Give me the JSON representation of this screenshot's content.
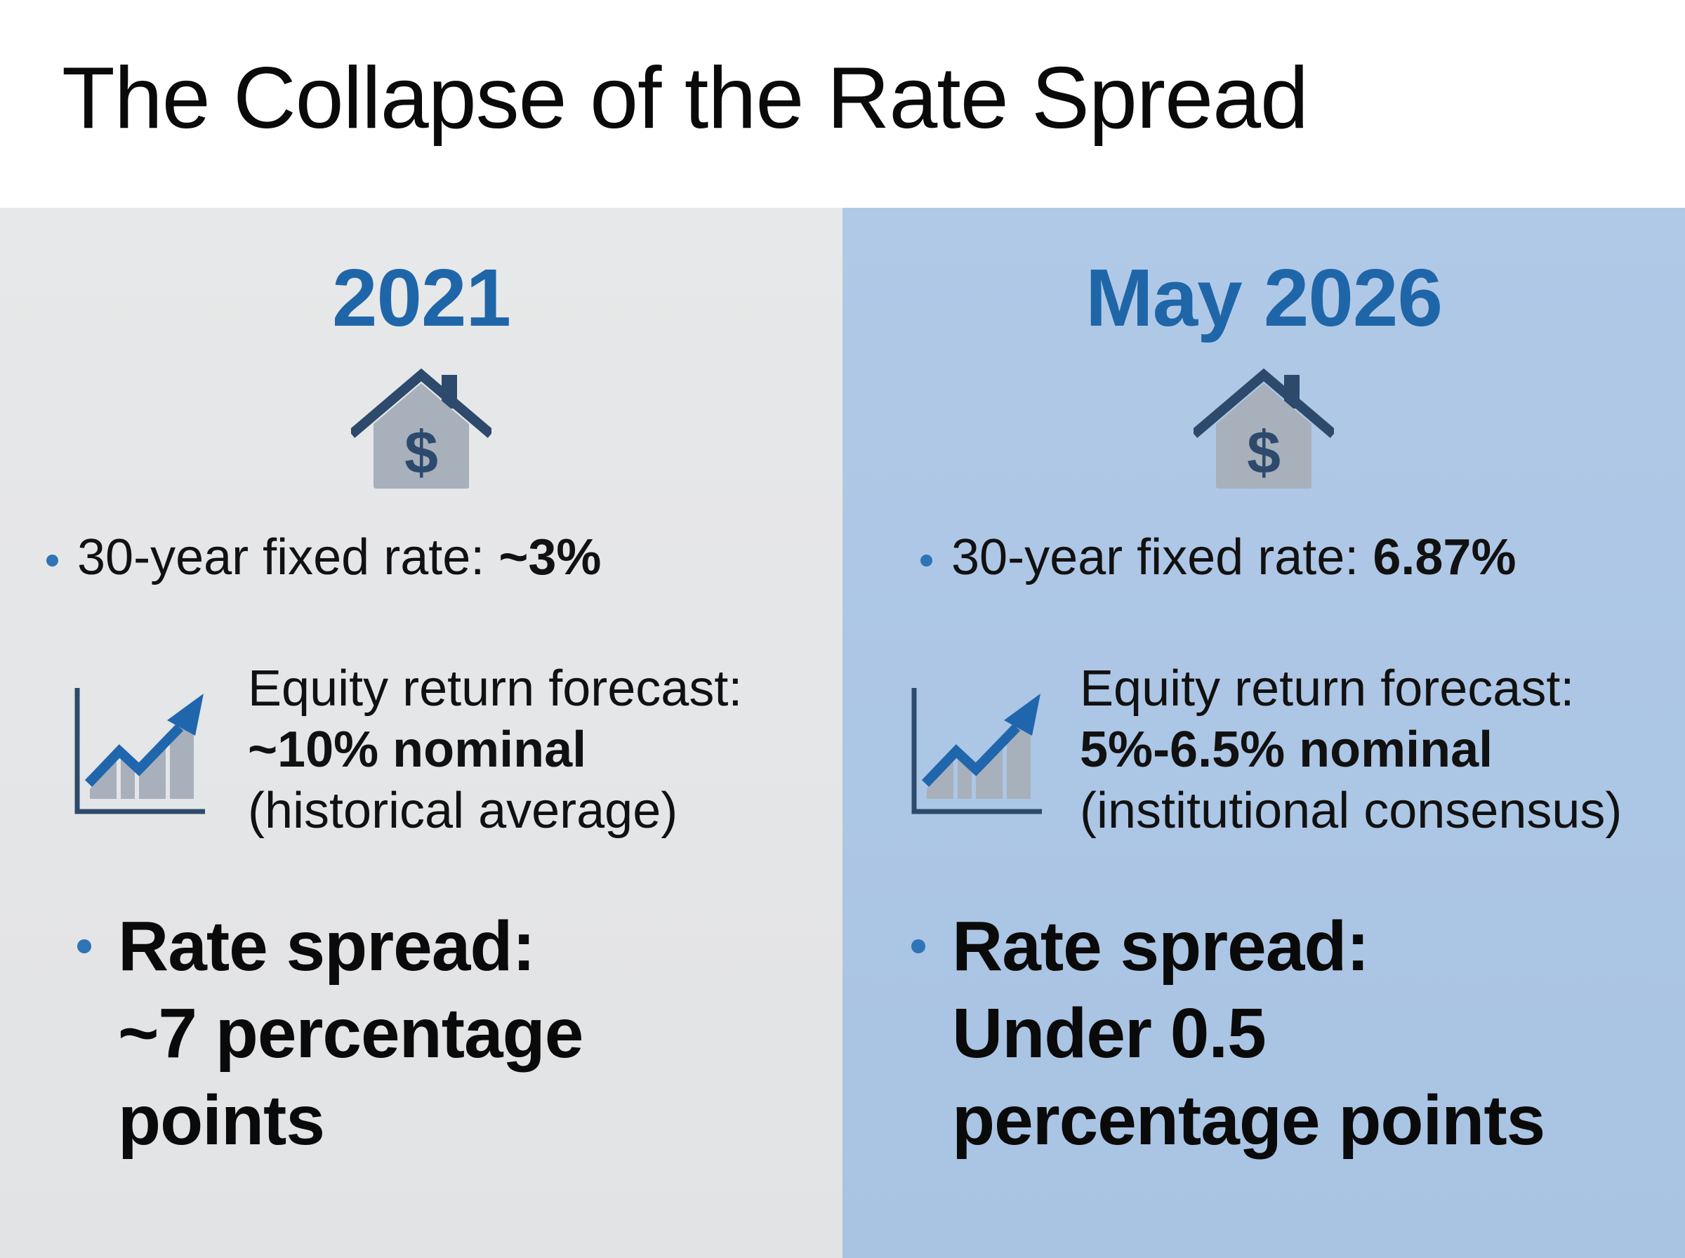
{
  "title": "The Collapse of the Rate Spread",
  "panels": {
    "left": {
      "year": "2021",
      "house_icon": "house-dollar-icon",
      "rate_label": "30-year fixed rate:",
      "rate_value": "~3%",
      "chart_icon": "rising-chart-icon",
      "forecast_label": "Equity return forecast:",
      "forecast_value": "~10% nominal",
      "forecast_note": "(historical average)",
      "spread_label": "Rate spread:",
      "spread_value_line1": "~7 percentage",
      "spread_value_line2": "points"
    },
    "right": {
      "year": "May 2026",
      "house_icon": "house-dollar-icon",
      "rate_label": "30-year fixed rate:",
      "rate_value": "6.87%",
      "chart_icon": "rising-chart-icon",
      "forecast_label": "Equity return forecast:",
      "forecast_value": "5%-6.5% nominal",
      "forecast_note": "(institutional consensus)",
      "spread_label": "Rate spread:",
      "spread_value_line1": "Under 0.5",
      "spread_value_line2": "percentage points"
    }
  },
  "colors": {
    "accent_blue": "#1f66a9",
    "bullet_blue": "#2e74b6",
    "icon_navy": "#2d4a6c",
    "icon_gray": "#a7b0bb",
    "left_panel_bg": "#e5e6e8",
    "right_panel_bg": "#adc6e5"
  }
}
